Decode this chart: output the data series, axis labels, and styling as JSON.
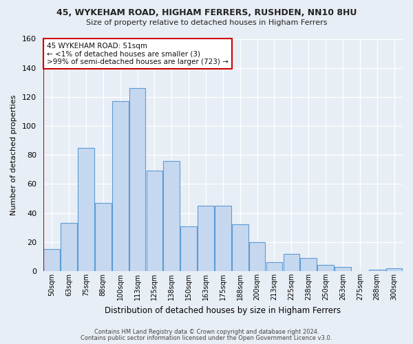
{
  "title1": "45, WYKEHAM ROAD, HIGHAM FERRERS, RUSHDEN, NN10 8HU",
  "title2": "Size of property relative to detached houses in Higham Ferrers",
  "xlabel": "Distribution of detached houses by size in Higham Ferrers",
  "ylabel": "Number of detached properties",
  "footnote1": "Contains HM Land Registry data © Crown copyright and database right 2024.",
  "footnote2": "Contains public sector information licensed under the Open Government Licence v3.0.",
  "bar_labels": [
    "50sqm",
    "63sqm",
    "75sqm",
    "88sqm",
    "100sqm",
    "113sqm",
    "125sqm",
    "138sqm",
    "150sqm",
    "163sqm",
    "175sqm",
    "188sqm",
    "200sqm",
    "213sqm",
    "225sqm",
    "238sqm",
    "250sqm",
    "263sqm",
    "275sqm",
    "288sqm",
    "300sqm"
  ],
  "bar_values": [
    15,
    33,
    85,
    47,
    117,
    126,
    69,
    76,
    31,
    45,
    45,
    32,
    20,
    6,
    12,
    9,
    4,
    3,
    0,
    1,
    2
  ],
  "bar_color": "#c5d8f0",
  "bar_edge_color": "#5b9bd5",
  "highlight_color": "#cc0000",
  "annotation_title": "45 WYKEHAM ROAD: 51sqm",
  "annotation_line1": "← <1% of detached houses are smaller (3)",
  "annotation_line2": ">99% of semi-detached houses are larger (723) →",
  "annotation_box_color": "#ffffff",
  "annotation_box_edge": "#cc0000",
  "ylim": [
    0,
    160
  ],
  "yticks": [
    0,
    20,
    40,
    60,
    80,
    100,
    120,
    140,
    160
  ],
  "bg_color": "#e8eef5",
  "axes_bg_color": "#e8eef5"
}
